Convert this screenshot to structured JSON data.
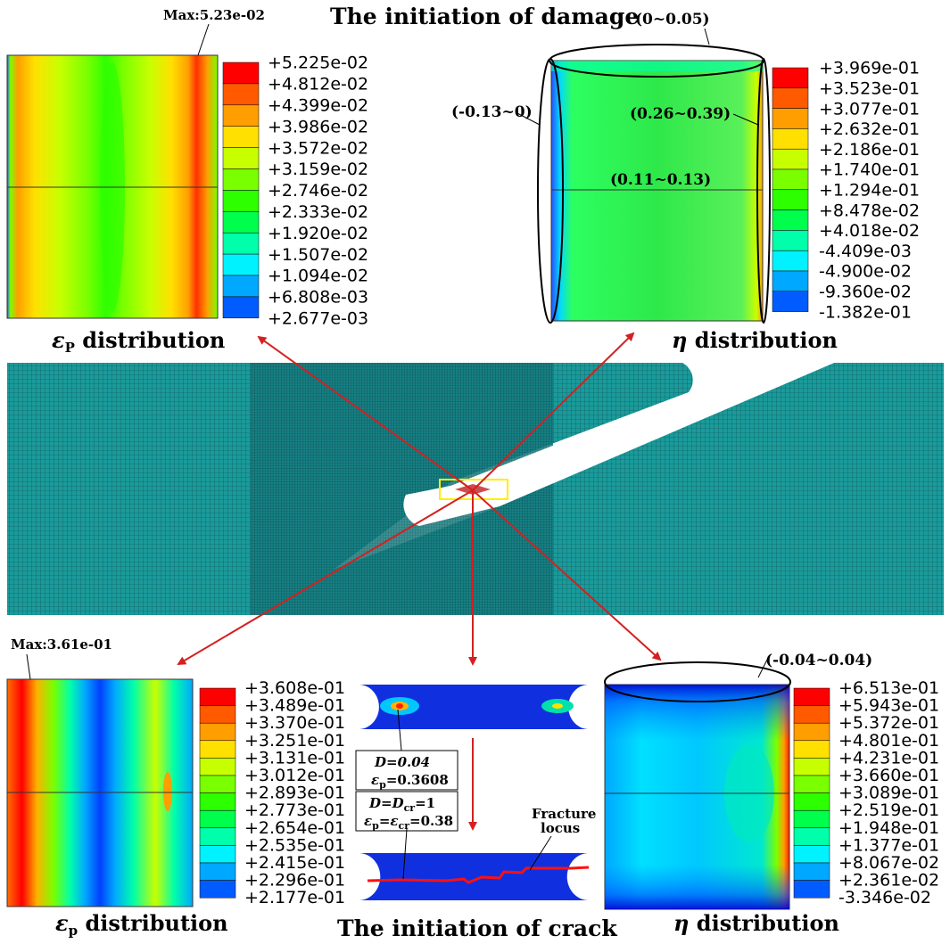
{
  "titles": {
    "top": "The initiation of damage",
    "bottom": "The initiation of crack"
  },
  "captions": {
    "top_left_sym": "ε",
    "top_left_sub": "P",
    "top_left_rest": " distribution",
    "top_right_sym": "η",
    "top_right_rest": " distribution",
    "bottom_left_sym": "ε",
    "bottom_left_sub": "p",
    "bottom_left_rest": " distribution",
    "bottom_right_sym": "η",
    "bottom_right_rest": " distribution"
  },
  "panels": {
    "top_left": {
      "max_label": "Max:5.23e-02",
      "legend_values": [
        "+5.225e-02",
        "+4.812e-02",
        "+4.399e-02",
        "+3.986e-02",
        "+3.572e-02",
        "+3.159e-02",
        "+2.746e-02",
        "+2.333e-02",
        "+1.920e-02",
        "+1.507e-02",
        "+1.094e-02",
        "+6.808e-03",
        "+2.677e-03"
      ]
    },
    "top_right": {
      "legend_values": [
        "+3.969e-01",
        "+3.523e-01",
        "+3.077e-01",
        "+2.632e-01",
        "+2.186e-01",
        "+1.740e-01",
        "+1.294e-01",
        "+8.478e-02",
        "+4.018e-02",
        "-4.409e-03",
        "-4.900e-02",
        "-9.360e-02",
        "-1.382e-01"
      ],
      "range_top": "(0~0.05)",
      "range_left": "(-0.13~0)",
      "range_right": "(0.26~0.39)",
      "range_center": "(0.11~0.13)"
    },
    "bottom_left": {
      "max_label": "Max:3.61e-01",
      "legend_values": [
        "+3.608e-01",
        "+3.489e-01",
        "+3.370e-01",
        "+3.251e-01",
        "+3.131e-01",
        "+3.012e-01",
        "+2.893e-01",
        "+2.773e-01",
        "+2.654e-01",
        "+2.535e-01",
        "+2.415e-01",
        "+2.296e-01",
        "+2.177e-01"
      ]
    },
    "bottom_right": {
      "legend_values": [
        "+6.513e-01",
        "+5.943e-01",
        "+5.372e-01",
        "+4.801e-01",
        "+4.231e-01",
        "+3.660e-01",
        "+3.089e-01",
        "+2.519e-01",
        "+1.948e-01",
        "+1.377e-01",
        "+8.067e-02",
        "+2.361e-02",
        "-3.346e-02"
      ],
      "range_top": "(-0.04~0.04)"
    },
    "crack": {
      "box1_line1": "D=0.04",
      "box1_line2_sym": "ε",
      "box1_line2_sub": "p",
      "box1_line2_val": "=0.3608",
      "box2_line1": "D=D",
      "box2_line1_sub": "cr",
      "box2_line1_val": "=1",
      "box2_line2": "ε",
      "box2_line2_sub": "p",
      "box2_line2_mid": "=ε",
      "box2_line2_sub2": "cr",
      "box2_line2_val": "=0.38",
      "fracture_label_1": "Fracture",
      "fracture_label_2": "locus"
    }
  },
  "legend_colors": [
    "#ff0000",
    "#ff5a00",
    "#ff9e00",
    "#ffe000",
    "#c8ff00",
    "#7aff00",
    "#2dff00",
    "#00ff4c",
    "#00ffaa",
    "#00f2ff",
    "#00a8ff",
    "#005cff",
    "#0000ff"
  ],
  "colors": {
    "mesh": "#1b9a9a",
    "arrow": "#d42020"
  }
}
